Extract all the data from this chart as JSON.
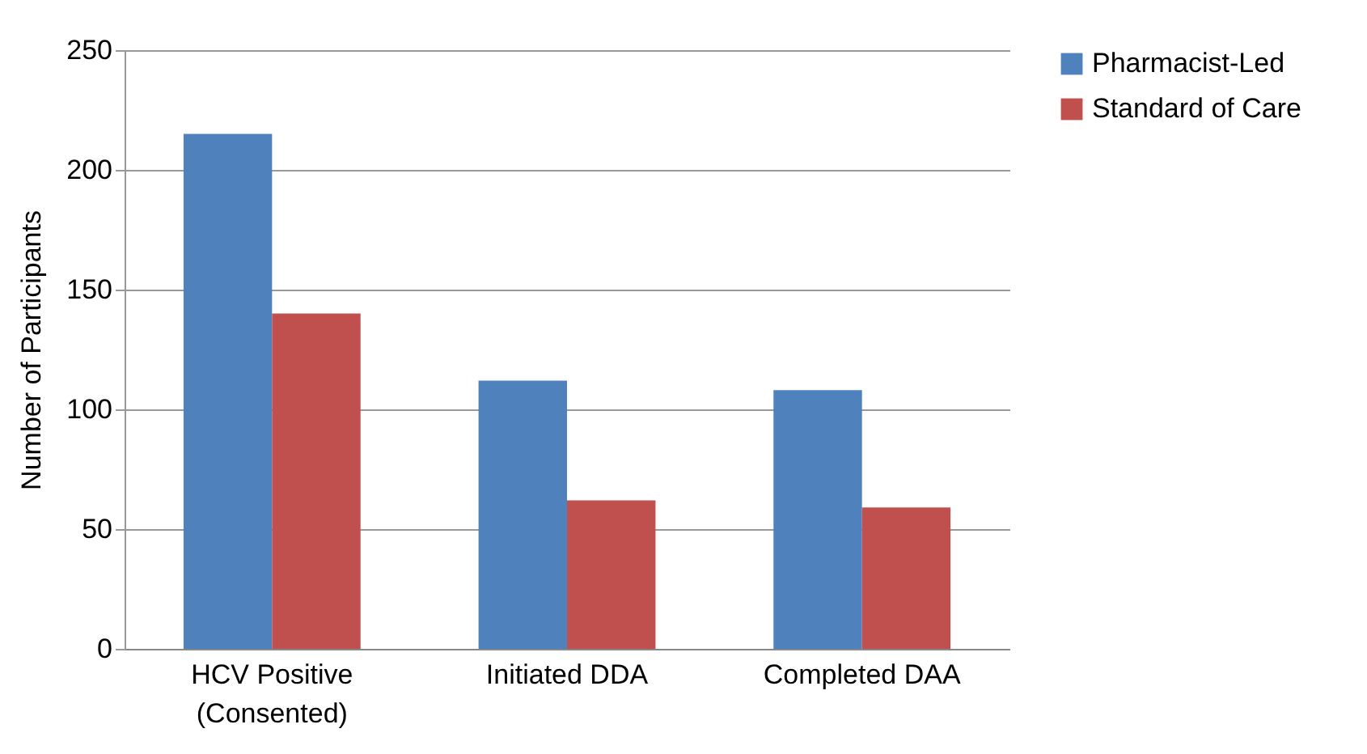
{
  "chart_data": {
    "type": "bar",
    "ylabel": "Number of Participants",
    "categories": [
      "HCV Positive\n(Consented)",
      "Initiated DDA",
      "Completed DAA"
    ],
    "series": [
      {
        "name": "Pharmacist-Led",
        "color": "#4f81bd",
        "values": [
          215,
          112,
          108
        ]
      },
      {
        "name": "Standard of Care",
        "color": "#c0504d",
        "values": [
          140,
          62,
          59
        ]
      }
    ],
    "ylim": [
      0,
      250
    ],
    "yticks": [
      0,
      50,
      100,
      150,
      200,
      250
    ],
    "grid": "y",
    "legend": "right"
  }
}
